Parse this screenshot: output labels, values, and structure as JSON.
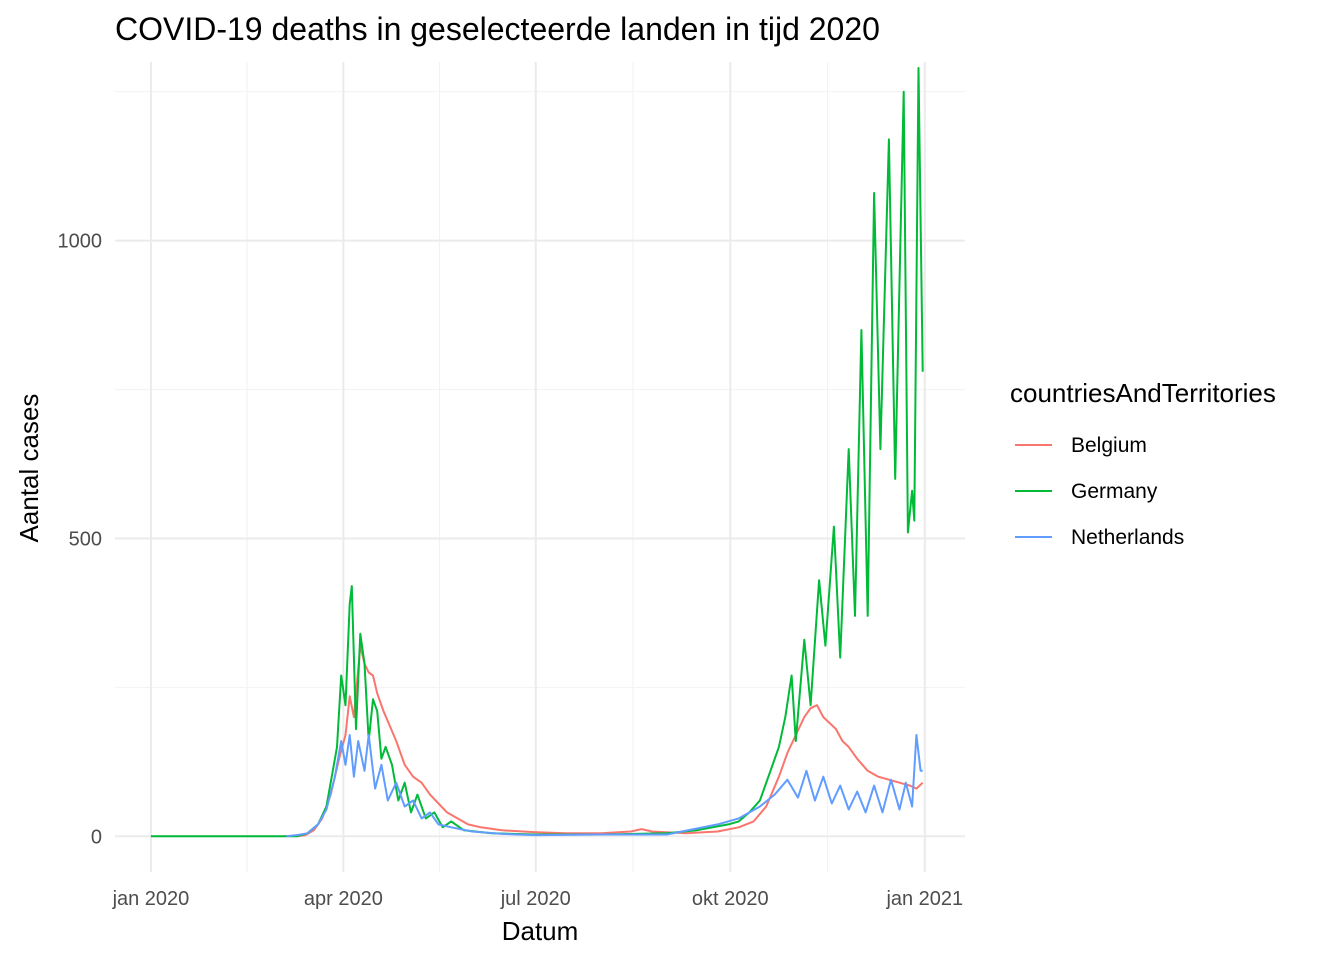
{
  "chart_data": {
    "type": "line",
    "title": "COVID-19 deaths in geselecteerde landen in tijd 2020",
    "xlabel": "Datum",
    "ylabel": "Aantal cases",
    "x_tick_labels": [
      "jan 2020",
      "apr 2020",
      "jul 2020",
      "okt 2020",
      "jan 2021"
    ],
    "x_tick_dates": [
      "2020-01-01",
      "2020-04-01",
      "2020-07-01",
      "2020-10-01",
      "2021-01-01"
    ],
    "xlim": [
      "2019-12-15",
      "2021-01-20"
    ],
    "y_ticks": [
      0,
      500,
      1000
    ],
    "ylim": [
      -60,
      1300
    ],
    "grid": true,
    "legend": {
      "title": "countriesAndTerritories",
      "position": "right"
    },
    "series": [
      {
        "name": "Belgium",
        "color": "#F8766D",
        "points": [
          [
            "2020-03-10",
            0
          ],
          [
            "2020-03-14",
            2
          ],
          [
            "2020-03-18",
            10
          ],
          [
            "2020-03-22",
            30
          ],
          [
            "2020-03-26",
            70
          ],
          [
            "2020-03-30",
            130
          ],
          [
            "2020-04-02",
            170
          ],
          [
            "2020-04-04",
            235
          ],
          [
            "2020-04-06",
            200
          ],
          [
            "2020-04-08",
            280
          ],
          [
            "2020-04-09",
            320
          ],
          [
            "2020-04-11",
            290
          ],
          [
            "2020-04-13",
            275
          ],
          [
            "2020-04-15",
            270
          ],
          [
            "2020-04-17",
            240
          ],
          [
            "2020-04-20",
            210
          ],
          [
            "2020-04-23",
            185
          ],
          [
            "2020-04-26",
            160
          ],
          [
            "2020-04-30",
            120
          ],
          [
            "2020-05-04",
            100
          ],
          [
            "2020-05-08",
            90
          ],
          [
            "2020-05-12",
            70
          ],
          [
            "2020-05-16",
            55
          ],
          [
            "2020-05-20",
            40
          ],
          [
            "2020-05-25",
            30
          ],
          [
            "2020-05-30",
            20
          ],
          [
            "2020-06-05",
            15
          ],
          [
            "2020-06-15",
            10
          ],
          [
            "2020-06-30",
            7
          ],
          [
            "2020-07-15",
            5
          ],
          [
            "2020-08-01",
            5
          ],
          [
            "2020-08-15",
            8
          ],
          [
            "2020-08-20",
            12
          ],
          [
            "2020-08-25",
            8
          ],
          [
            "2020-09-10",
            5
          ],
          [
            "2020-09-25",
            8
          ],
          [
            "2020-10-05",
            15
          ],
          [
            "2020-10-12",
            25
          ],
          [
            "2020-10-18",
            50
          ],
          [
            "2020-10-24",
            100
          ],
          [
            "2020-10-28",
            140
          ],
          [
            "2020-11-01",
            170
          ],
          [
            "2020-11-05",
            200
          ],
          [
            "2020-11-08",
            215
          ],
          [
            "2020-11-11",
            220
          ],
          [
            "2020-11-14",
            200
          ],
          [
            "2020-11-17",
            190
          ],
          [
            "2020-11-20",
            180
          ],
          [
            "2020-11-23",
            160
          ],
          [
            "2020-11-26",
            150
          ],
          [
            "2020-11-30",
            130
          ],
          [
            "2020-12-05",
            110
          ],
          [
            "2020-12-10",
            100
          ],
          [
            "2020-12-15",
            95
          ],
          [
            "2020-12-20",
            90
          ],
          [
            "2020-12-25",
            85
          ],
          [
            "2020-12-28",
            80
          ],
          [
            "2020-12-31",
            90
          ]
        ]
      },
      {
        "name": "Germany",
        "color": "#00BA38",
        "points": [
          [
            "2020-01-01",
            0
          ],
          [
            "2020-03-10",
            0
          ],
          [
            "2020-03-15",
            5
          ],
          [
            "2020-03-20",
            20
          ],
          [
            "2020-03-24",
            50
          ],
          [
            "2020-03-27",
            110
          ],
          [
            "2020-03-29",
            150
          ],
          [
            "2020-03-31",
            270
          ],
          [
            "2020-04-02",
            220
          ],
          [
            "2020-04-04",
            390
          ],
          [
            "2020-04-05",
            420
          ],
          [
            "2020-04-07",
            180
          ],
          [
            "2020-04-09",
            340
          ],
          [
            "2020-04-11",
            290
          ],
          [
            "2020-04-13",
            160
          ],
          [
            "2020-04-15",
            230
          ],
          [
            "2020-04-17",
            210
          ],
          [
            "2020-04-19",
            130
          ],
          [
            "2020-04-21",
            150
          ],
          [
            "2020-04-24",
            120
          ],
          [
            "2020-04-27",
            60
          ],
          [
            "2020-04-30",
            90
          ],
          [
            "2020-05-03",
            40
          ],
          [
            "2020-05-06",
            70
          ],
          [
            "2020-05-10",
            30
          ],
          [
            "2020-05-14",
            40
          ],
          [
            "2020-05-18",
            15
          ],
          [
            "2020-05-22",
            25
          ],
          [
            "2020-05-28",
            10
          ],
          [
            "2020-06-10",
            5
          ],
          [
            "2020-07-01",
            3
          ],
          [
            "2020-08-01",
            3
          ],
          [
            "2020-09-01",
            5
          ],
          [
            "2020-09-15",
            10
          ],
          [
            "2020-09-30",
            20
          ],
          [
            "2020-10-05",
            25
          ],
          [
            "2020-10-10",
            40
          ],
          [
            "2020-10-15",
            60
          ],
          [
            "2020-10-20",
            110
          ],
          [
            "2020-10-24",
            150
          ],
          [
            "2020-10-27",
            200
          ],
          [
            "2020-10-30",
            270
          ],
          [
            "2020-11-01",
            160
          ],
          [
            "2020-11-05",
            330
          ],
          [
            "2020-11-08",
            220
          ],
          [
            "2020-11-12",
            430
          ],
          [
            "2020-11-15",
            320
          ],
          [
            "2020-11-19",
            520
          ],
          [
            "2020-11-22",
            300
          ],
          [
            "2020-11-26",
            650
          ],
          [
            "2020-11-29",
            370
          ],
          [
            "2020-12-02",
            850
          ],
          [
            "2020-12-05",
            370
          ],
          [
            "2020-12-08",
            1080
          ],
          [
            "2020-12-11",
            650
          ],
          [
            "2020-12-15",
            1170
          ],
          [
            "2020-12-18",
            600
          ],
          [
            "2020-12-22",
            1250
          ],
          [
            "2020-12-24",
            510
          ],
          [
            "2020-12-26",
            580
          ],
          [
            "2020-12-27",
            530
          ],
          [
            "2020-12-29",
            1290
          ],
          [
            "2020-12-31",
            780
          ]
        ]
      },
      {
        "name": "Netherlands",
        "color": "#619CFF",
        "points": [
          [
            "2020-03-05",
            0
          ],
          [
            "2020-03-10",
            2
          ],
          [
            "2020-03-15",
            5
          ],
          [
            "2020-03-20",
            20
          ],
          [
            "2020-03-24",
            45
          ],
          [
            "2020-03-28",
            100
          ],
          [
            "2020-03-31",
            160
          ],
          [
            "2020-04-02",
            120
          ],
          [
            "2020-04-04",
            170
          ],
          [
            "2020-04-06",
            100
          ],
          [
            "2020-04-08",
            160
          ],
          [
            "2020-04-11",
            110
          ],
          [
            "2020-04-13",
            170
          ],
          [
            "2020-04-16",
            80
          ],
          [
            "2020-04-19",
            120
          ],
          [
            "2020-04-22",
            60
          ],
          [
            "2020-04-26",
            90
          ],
          [
            "2020-04-30",
            50
          ],
          [
            "2020-05-04",
            60
          ],
          [
            "2020-05-08",
            30
          ],
          [
            "2020-05-12",
            40
          ],
          [
            "2020-05-16",
            20
          ],
          [
            "2020-05-22",
            15
          ],
          [
            "2020-06-01",
            8
          ],
          [
            "2020-06-15",
            4
          ],
          [
            "2020-07-01",
            2
          ],
          [
            "2020-08-01",
            3
          ],
          [
            "2020-09-01",
            3
          ],
          [
            "2020-09-25",
            20
          ],
          [
            "2020-10-05",
            30
          ],
          [
            "2020-10-15",
            50
          ],
          [
            "2020-10-22",
            70
          ],
          [
            "2020-10-28",
            95
          ],
          [
            "2020-11-02",
            65
          ],
          [
            "2020-11-06",
            110
          ],
          [
            "2020-11-10",
            60
          ],
          [
            "2020-11-14",
            100
          ],
          [
            "2020-11-18",
            55
          ],
          [
            "2020-11-22",
            85
          ],
          [
            "2020-11-26",
            45
          ],
          [
            "2020-11-30",
            75
          ],
          [
            "2020-12-04",
            40
          ],
          [
            "2020-12-08",
            85
          ],
          [
            "2020-12-12",
            40
          ],
          [
            "2020-12-16",
            95
          ],
          [
            "2020-12-20",
            45
          ],
          [
            "2020-12-23",
            90
          ],
          [
            "2020-12-26",
            50
          ],
          [
            "2020-12-28",
            170
          ],
          [
            "2020-12-30",
            110
          ],
          [
            "2020-12-31",
            110
          ]
        ]
      }
    ]
  }
}
